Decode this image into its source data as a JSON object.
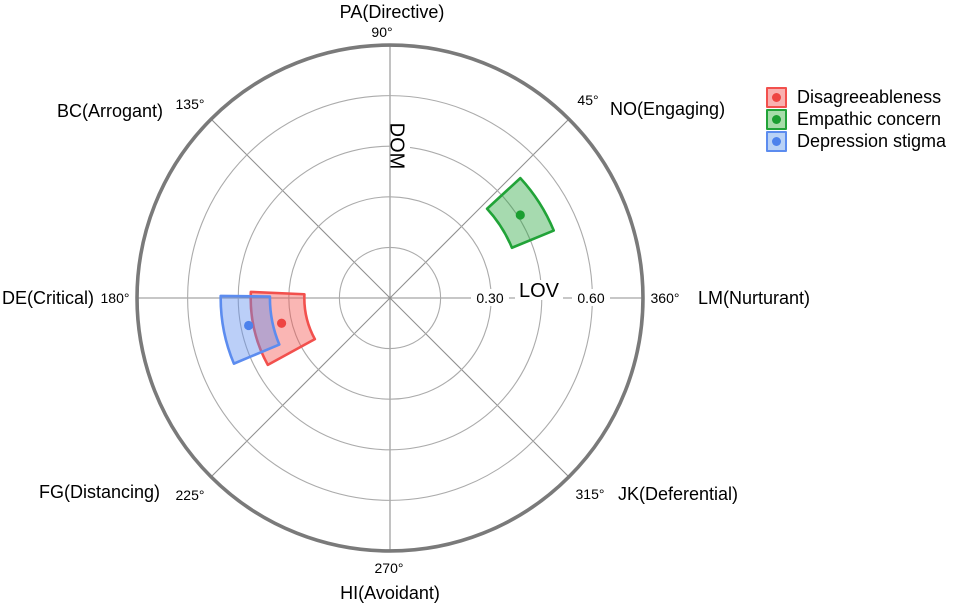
{
  "chart_data": {
    "type": "polar-annular-sector-ci",
    "title": "",
    "axis": {
      "dom": "DOM",
      "lov": "LOV",
      "rings": [
        0.15,
        0.3,
        0.45,
        0.6,
        0.75
      ],
      "outer": 0.75,
      "tick_labels": [
        {
          "text": "0.30",
          "value": 0.3
        },
        {
          "text": "0.60",
          "value": 0.6
        }
      ],
      "grid_color": "#ababab",
      "spoke_color": "#8f8f8f",
      "outer_circle_color": "#7a7a7a"
    },
    "octants": [
      {
        "label": "PA(Directive)",
        "angle_label": "90°",
        "angle_deg": 90
      },
      {
        "label": "NO(Engaging)",
        "angle_label": "45°",
        "angle_deg": 45
      },
      {
        "label": "LM(Nurturant)",
        "angle_label": "360°",
        "angle_deg": 360
      },
      {
        "label": "JK(Deferential)",
        "angle_label": "315°",
        "angle_deg": 315
      },
      {
        "label": "HI(Avoidant)",
        "angle_label": "270°",
        "angle_deg": 270
      },
      {
        "label": "FG(Distancing)",
        "angle_label": "225°",
        "angle_deg": 225
      },
      {
        "label": "DE(Critical)",
        "angle_label": "180°",
        "angle_deg": 180
      },
      {
        "label": "BC(Arrogant)",
        "angle_label": "135°",
        "angle_deg": 135
      }
    ],
    "series": [
      {
        "name": "Disagreeableness",
        "stroke": "#f2504d",
        "dot": "#ee4542",
        "fill_light": "#f9b1b0",
        "fill_opacity": 0.42,
        "angle_deg": 193.1,
        "angle_ci_deg": [
          177.5,
          208.7
        ],
        "amplitude": 0.33,
        "amplitude_ci": [
          0.254,
          0.413
        ]
      },
      {
        "name": "Empathic concern",
        "stroke": "#21a338",
        "dot": "#1b9e31",
        "fill_light": "#a7dcaa",
        "fill_opacity": 0.4,
        "angle_deg": 32.5,
        "angle_ci_deg": [
          22.4,
          42.6
        ],
        "amplitude": 0.458,
        "amplitude_ci": [
          0.391,
          0.525
        ]
      },
      {
        "name": "Depression stigma",
        "stroke": "#5c8cef",
        "dot": "#4d82ec",
        "fill_light": "#b9d2f6",
        "fill_opacity": 0.42,
        "angle_deg": 191.0,
        "angle_ci_deg": [
          179.3,
          202.8
        ],
        "amplitude": 0.427,
        "amplitude_ci": [
          0.356,
          0.502
        ]
      }
    ],
    "legend_position": "top-right"
  }
}
